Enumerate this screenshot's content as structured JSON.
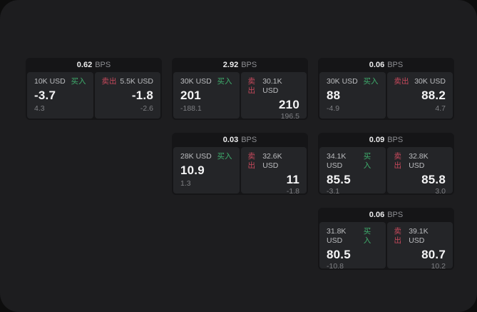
{
  "labels": {
    "buy": "买入",
    "sell": "卖出",
    "bps": "BPS"
  },
  "colors": {
    "buy_green": "#3fae6d",
    "sell_red": "#c8495c",
    "page_bg": "#1d1d1f",
    "card_bg": "#151517",
    "panel_bg": "#242528"
  },
  "cards": [
    {
      "bps": "0.62",
      "buy": {
        "amount": "10K USD",
        "value": "-3.7",
        "delta": "4.3"
      },
      "sell": {
        "amount": "5.5K USD",
        "value": "-1.8",
        "delta": "-2.6"
      }
    },
    {
      "bps": "2.92",
      "buy": {
        "amount": "30K USD",
        "value": "201",
        "delta": "-188.1"
      },
      "sell": {
        "amount": "30.1K USD",
        "value": "210",
        "delta": "196.5"
      }
    },
    {
      "bps": "0.06",
      "buy": {
        "amount": "30K USD",
        "value": "88",
        "delta": "-4.9"
      },
      "sell": {
        "amount": "30K USD",
        "value": "88.2",
        "delta": "4.7"
      }
    },
    {
      "bps": "0.03",
      "buy": {
        "amount": "28K USD",
        "value": "10.9",
        "delta": "1.3"
      },
      "sell": {
        "amount": "32.6K USD",
        "value": "11",
        "delta": "-1.8"
      }
    },
    {
      "bps": "0.09",
      "buy": {
        "amount": "34.1K USD",
        "value": "85.5",
        "delta": "-3.1"
      },
      "sell": {
        "amount": "32.8K USD",
        "value": "85.8",
        "delta": "3.0"
      }
    },
    {
      "bps": "0.06",
      "buy": {
        "amount": "31.8K USD",
        "value": "80.5",
        "delta": "-10.8"
      },
      "sell": {
        "amount": "39.1K USD",
        "value": "80.7",
        "delta": "10.2"
      }
    }
  ]
}
